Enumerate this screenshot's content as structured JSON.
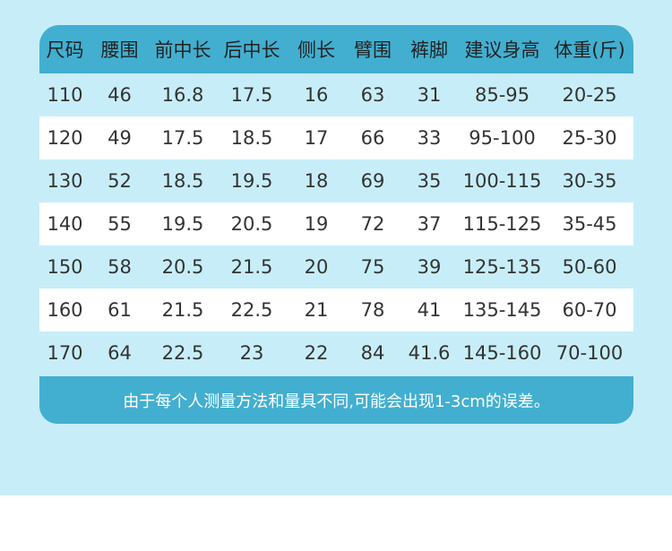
{
  "colors": {
    "background": "#c7eef8",
    "header": "#42afd0",
    "row_alt": "#ffffff"
  },
  "table": {
    "headers": [
      "尺码",
      "腰围",
      "前中长",
      "后中长",
      "侧长",
      "臂围",
      "裤脚",
      "建议身高",
      "体重(斤)"
    ],
    "rows": [
      [
        "110",
        "46",
        "16.8",
        "17.5",
        "16",
        "63",
        "31",
        "85-95",
        "20-25"
      ],
      [
        "120",
        "49",
        "17.5",
        "18.5",
        "17",
        "66",
        "33",
        "95-100",
        "25-30"
      ],
      [
        "130",
        "52",
        "18.5",
        "19.5",
        "18",
        "69",
        "35",
        "100-115",
        "30-35"
      ],
      [
        "140",
        "55",
        "19.5",
        "20.5",
        "19",
        "72",
        "37",
        "115-125",
        "35-45"
      ],
      [
        "150",
        "58",
        "20.5",
        "21.5",
        "20",
        "75",
        "39",
        "125-135",
        "50-60"
      ],
      [
        "160",
        "61",
        "21.5",
        "22.5",
        "21",
        "78",
        "41",
        "135-145",
        "60-70"
      ],
      [
        "170",
        "64",
        "22.5",
        "23",
        "22",
        "84",
        "41.6",
        "145-160",
        "70-100"
      ]
    ]
  },
  "footer": {
    "note": "由于每个人测量方法和量具不同,可能会出现1-3cm的误差。"
  }
}
